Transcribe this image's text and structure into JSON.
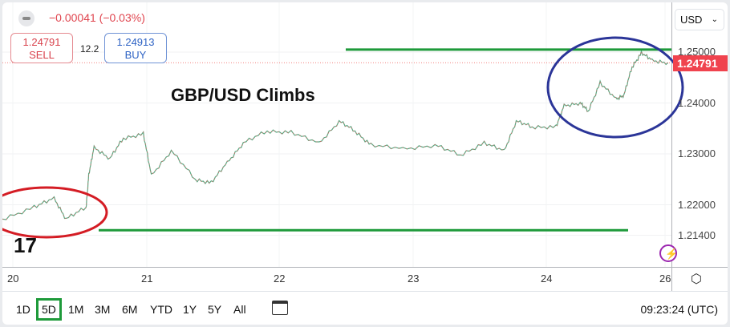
{
  "header": {
    "change": "−0.00041 (−0.03%)",
    "sell_price": "1.24791",
    "sell_label": "SELL",
    "spread": "12.2",
    "buy_price": "1.24913",
    "buy_label": "BUY"
  },
  "annotation_title": "GBP/USD Climbs",
  "currency_select": "USD",
  "current_price": "1.24791",
  "colors": {
    "up": "#26a69a",
    "down": "#ef5350",
    "line": "#2b9a45",
    "support_line": "#1e9a3a",
    "ellipse_left": "#d41c24",
    "ellipse_right": "#2b3598",
    "price_badge": "#f0434e"
  },
  "toolbar": {
    "timeframes": [
      "1D",
      "5D",
      "1M",
      "3M",
      "6M",
      "YTD",
      "1Y",
      "5Y",
      "All"
    ],
    "selected": "5D",
    "time": "09:23:24 (UTC)"
  },
  "chart_data": {
    "type": "line",
    "y_ticks": [
      "1.25000",
      "1.24000",
      "1.23000",
      "1.22000",
      "1.21400"
    ],
    "y_tick_values": [
      1.25,
      1.24,
      1.23,
      1.22,
      1.214
    ],
    "x_ticks": [
      "20",
      "21",
      "22",
      "23",
      "24",
      "26"
    ],
    "resistance": 1.2505,
    "support": 1.215,
    "points": [
      [
        19.92,
        1.2172
      ],
      [
        20.16,
        1.2195
      ],
      [
        20.31,
        1.2213
      ],
      [
        20.4,
        1.2172
      ],
      [
        20.55,
        1.2195
      ],
      [
        20.57,
        1.2258
      ],
      [
        20.61,
        1.2313
      ],
      [
        20.73,
        1.2291
      ],
      [
        20.83,
        1.2331
      ],
      [
        20.98,
        1.2339
      ],
      [
        21.04,
        1.2258
      ],
      [
        21.19,
        1.2306
      ],
      [
        21.37,
        1.225
      ],
      [
        21.49,
        1.2243
      ],
      [
        21.61,
        1.2283
      ],
      [
        21.73,
        1.2321
      ],
      [
        21.91,
        1.2345
      ],
      [
        22.09,
        1.2342
      ],
      [
        22.3,
        1.2321
      ],
      [
        22.45,
        1.2364
      ],
      [
        22.57,
        1.2345
      ],
      [
        22.69,
        1.2317
      ],
      [
        22.93,
        1.231
      ],
      [
        23.17,
        1.2317
      ],
      [
        23.36,
        1.2298
      ],
      [
        23.54,
        1.2321
      ],
      [
        23.69,
        1.2306
      ],
      [
        23.78,
        1.2364
      ],
      [
        23.9,
        1.2353
      ],
      [
        24.08,
        1.2353
      ],
      [
        24.14,
        1.2395
      ],
      [
        24.26,
        1.24
      ],
      [
        24.32,
        1.2384
      ],
      [
        24.41,
        1.2439
      ],
      [
        24.53,
        1.2408
      ],
      [
        24.59,
        1.2416
      ],
      [
        24.65,
        1.2471
      ],
      [
        24.72,
        1.2498
      ],
      [
        24.8,
        1.2484
      ],
      [
        24.92,
        1.2479
      ]
    ]
  }
}
